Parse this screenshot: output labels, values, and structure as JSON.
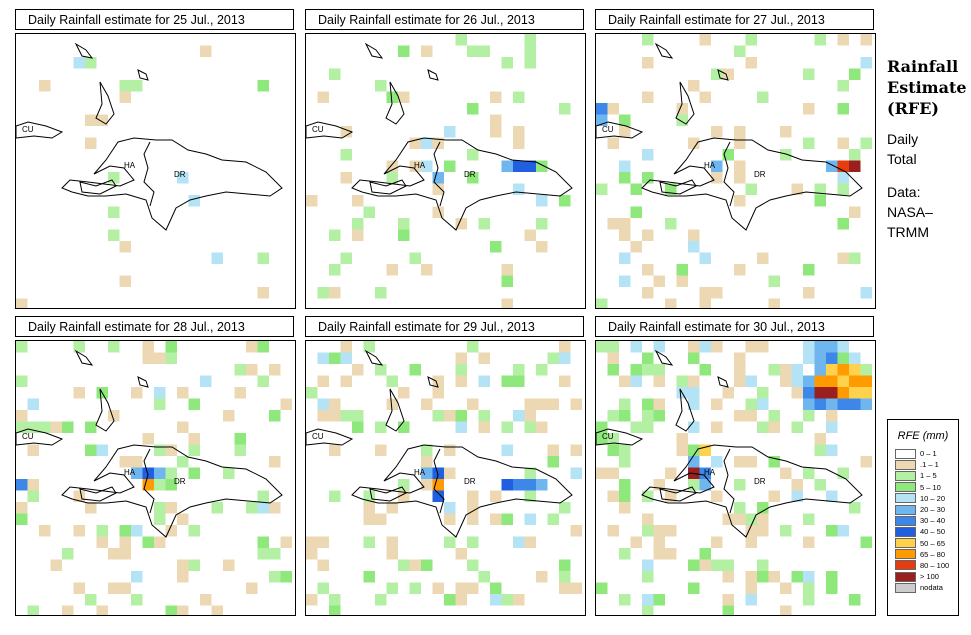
{
  "panels": [
    {
      "title": "Daily Rainfall estimate for  25 Jul., 2013",
      "date": "25 Jul., 2013"
    },
    {
      "title": "Daily Rainfall estimate for  26 Jul., 2013",
      "date": "26 Jul., 2013"
    },
    {
      "title": "Daily Rainfall estimate for  27 Jul., 2013",
      "date": "27 Jul., 2013"
    },
    {
      "title": "Daily Rainfall estimate for  28 Jul., 2013",
      "date": "28 Jul., 2013"
    },
    {
      "title": "Daily Rainfall estimate for  29 Jul., 2013",
      "date": "29 Jul., 2013"
    },
    {
      "title": "Daily Rainfall estimate for  30 Jul., 2013",
      "date": "30 Jul., 2013"
    }
  ],
  "map_labels": {
    "cuba": "CU",
    "haiti": "HA",
    "dominican_republic": "DR"
  },
  "sidebar": {
    "title_line1": "Rainfall",
    "title_line2": "Estimate",
    "title_line3": "(RFE)",
    "daily": "Daily",
    "total": "Total",
    "data_label": "Data:",
    "source_line1": "NASA–",
    "source_line2": "TRMM"
  },
  "legend": {
    "title": "RFE (mm)",
    "classes": [
      {
        "label": "0 – 1",
        "color": "#ffffff"
      },
      {
        "label": ".1 – 1",
        "color": "#ecd9b3"
      },
      {
        "label": "1 – 5",
        "color": "#b3f0a3"
      },
      {
        "label": "5 – 10",
        "color": "#8fe87c"
      },
      {
        "label": "10 – 20",
        "color": "#b3e3f5"
      },
      {
        "label": "20 – 30",
        "color": "#6fb6ee"
      },
      {
        "label": "30 – 40",
        "color": "#3c87e8"
      },
      {
        "label": "40 – 50",
        "color": "#1f5fe0"
      },
      {
        "label": "50 – 65",
        "color": "#ffd24d"
      },
      {
        "label": "65 – 80",
        "color": "#ff9a00"
      },
      {
        "label": "80 – 100",
        "color": "#e63c0f"
      },
      {
        "label": "> 100",
        "color": "#9a1f1f"
      },
      {
        "label": "nodata",
        "color": "#cccccc"
      }
    ]
  }
}
